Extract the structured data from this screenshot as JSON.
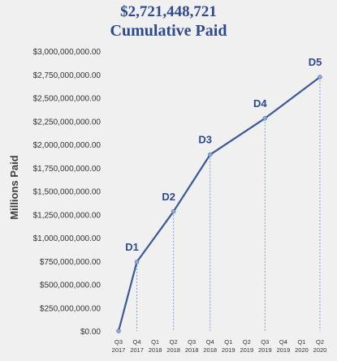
{
  "chart_data": {
    "type": "line",
    "title": "$2,721,448,721",
    "subtitle": "Cumulative Paid",
    "ylabel": "Millions Paid",
    "xlabel": "",
    "ylim": [
      0,
      3000000000
    ],
    "y_ticks": [
      {
        "value": 0,
        "label": "$0.00"
      },
      {
        "value": 250000000,
        "label": "$250,000,000.00"
      },
      {
        "value": 500000000,
        "label": "$500,000,000.00"
      },
      {
        "value": 750000000,
        "label": "$750,000,000.00"
      },
      {
        "value": 1000000000,
        "label": "$1,000,000,000.00"
      },
      {
        "value": 1250000000,
        "label": "$1,250,000,000.00"
      },
      {
        "value": 1500000000,
        "label": "$1,500,000,000.00"
      },
      {
        "value": 1750000000,
        "label": "$1,750,000,000.00"
      },
      {
        "value": 2000000000,
        "label": "$2,000,000,000.00"
      },
      {
        "value": 2250000000,
        "label": "$2,250,000,000.00"
      },
      {
        "value": 2500000000,
        "label": "$2,500,000,000.00"
      },
      {
        "value": 2750000000,
        "label": "$2,750,000,000.00"
      },
      {
        "value": 3000000000,
        "label": "$3,000,000,000.00"
      }
    ],
    "categories": [
      [
        "Q3",
        "2017"
      ],
      [
        "Q4",
        "2017"
      ],
      [
        "Q1",
        "2018"
      ],
      [
        "Q2",
        "2018"
      ],
      [
        "Q3",
        "2018"
      ],
      [
        "Q4",
        "2018"
      ],
      [
        "Q1",
        "2019"
      ],
      [
        "Q2",
        "2019"
      ],
      [
        "Q3",
        "2019"
      ],
      [
        "Q4",
        "2019"
      ],
      [
        "Q1",
        "2020"
      ],
      [
        "Q2",
        "2020"
      ]
    ],
    "points": [
      {
        "category_index": 0,
        "value": 0,
        "label": ""
      },
      {
        "category_index": 1,
        "value": 740000000,
        "label": "D1"
      },
      {
        "category_index": 3,
        "value": 1280000000,
        "label": "D2"
      },
      {
        "category_index": 5,
        "value": 1890000000,
        "label": "D3"
      },
      {
        "category_index": 8,
        "value": 2280000000,
        "label": "D4"
      },
      {
        "category_index": 11,
        "value": 2721448721,
        "label": "D5"
      }
    ],
    "grid": false,
    "drop_lines": true,
    "colors": {
      "line": "#3b5998",
      "marker": "#8fa8d8",
      "drop_line": "#7e9bd1",
      "title": "#2e4a8c",
      "point_label": "#2e4a8c",
      "axis_text": "#333333"
    }
  }
}
